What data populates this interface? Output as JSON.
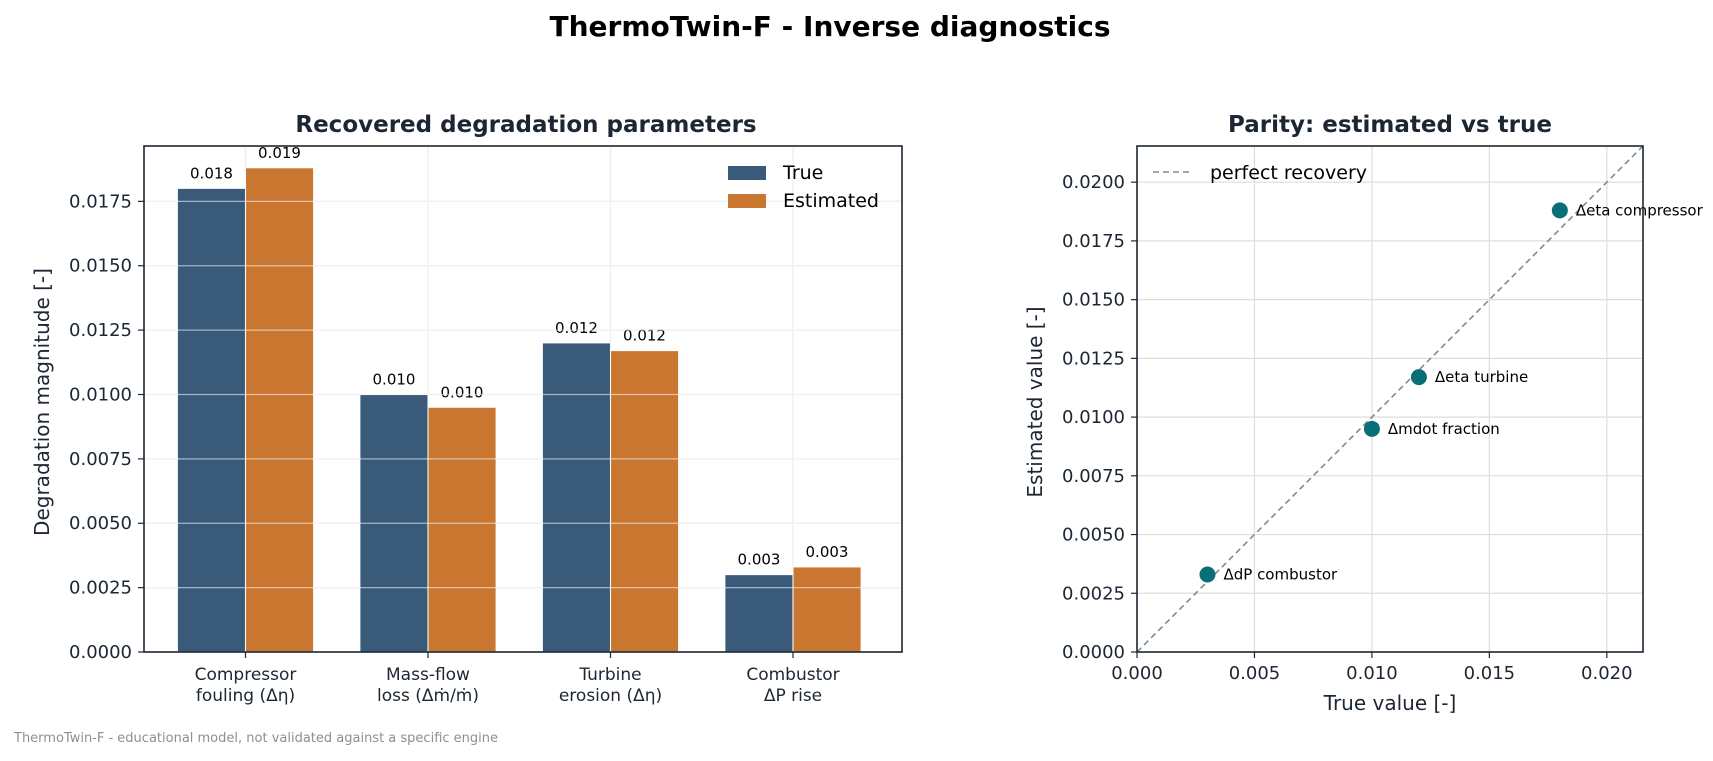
{
  "figure": {
    "title": "ThermoTwin-F  -  Inverse diagnostics",
    "footer": "ThermoTwin-F - educational model, not validated against a specific engine"
  },
  "colors": {
    "true_bar": "#3a5a7a",
    "estimated_bar": "#c87630",
    "scatter_point": "#0a6e78",
    "parity_line": "#888888",
    "grid": "#dddddd",
    "axis": "#1c2733"
  },
  "chart_data": [
    {
      "type": "bar",
      "title": "Recovered degradation parameters",
      "xlabel": "",
      "ylabel": "Degradation magnitude [-]",
      "categories": [
        [
          "Compressor",
          "fouling (Δη)"
        ],
        [
          "Mass-flow",
          "loss (Δṁ/ṁ)"
        ],
        [
          "Turbine",
          "erosion (Δη)"
        ],
        [
          "Combustor",
          "ΔP rise"
        ]
      ],
      "series": [
        {
          "name": "True",
          "values": [
            0.018,
            0.01,
            0.012,
            0.003
          ],
          "labels": [
            "0.018",
            "0.010",
            "0.012",
            "0.003"
          ]
        },
        {
          "name": "Estimated",
          "values": [
            0.0188,
            0.0095,
            0.0117,
            0.0033
          ],
          "labels": [
            "0.019",
            "0.010",
            "0.012",
            "0.003"
          ]
        }
      ],
      "ylim": [
        0,
        0.01965
      ],
      "yticks": [
        0,
        0.0025,
        0.005,
        0.0075,
        0.01,
        0.0125,
        0.015,
        0.0175
      ],
      "ytick_labels": [
        "0.0000",
        "0.0025",
        "0.0050",
        "0.0075",
        "0.0100",
        "0.0125",
        "0.0150",
        "0.0175"
      ],
      "grid": true,
      "legend": "top-right"
    },
    {
      "type": "scatter",
      "title": "Parity: estimated vs true",
      "xlabel": "True value [-]",
      "ylabel": "Estimated value [-]",
      "points": [
        {
          "label": "Δeta compressor",
          "x": 0.018,
          "y": 0.0188
        },
        {
          "label": "Δmdot fraction",
          "x": 0.01,
          "y": 0.0095
        },
        {
          "label": "Δeta turbine",
          "x": 0.012,
          "y": 0.0117
        },
        {
          "label": "ΔdP combustor",
          "x": 0.003,
          "y": 0.0033
        }
      ],
      "reference_line": {
        "name": "perfect recovery",
        "slope": 1
      },
      "xlim": [
        0,
        0.02154
      ],
      "ylim": [
        0,
        0.02154
      ],
      "xticks": [
        0,
        0.005,
        0.01,
        0.015,
        0.02
      ],
      "xtick_labels": [
        "0.000",
        "0.005",
        "0.010",
        "0.015",
        "0.020"
      ],
      "yticks": [
        0,
        0.0025,
        0.005,
        0.0075,
        0.01,
        0.0125,
        0.015,
        0.0175,
        0.02
      ],
      "ytick_labels": [
        "0.0000",
        "0.0025",
        "0.0050",
        "0.0075",
        "0.0100",
        "0.0125",
        "0.0150",
        "0.0175",
        "0.0200"
      ],
      "grid": true,
      "legend": "top-left"
    }
  ]
}
